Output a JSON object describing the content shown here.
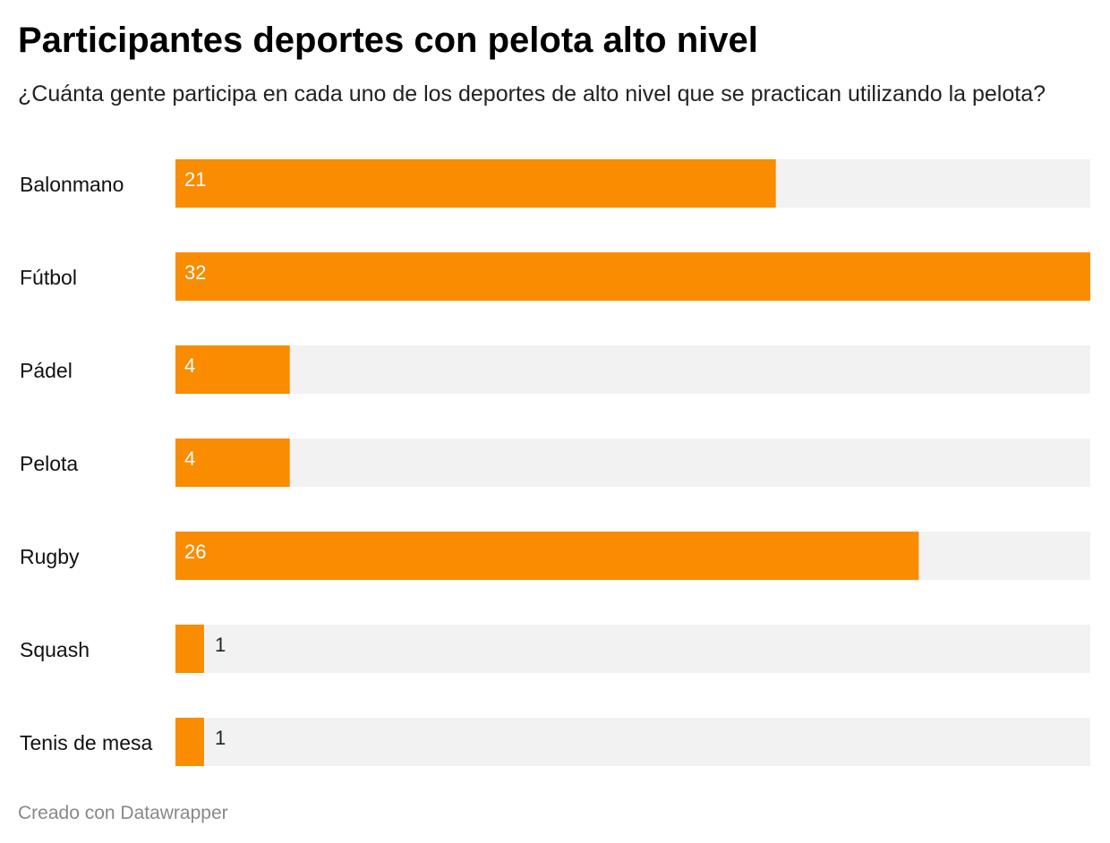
{
  "chart_data": {
    "type": "bar",
    "orientation": "horizontal",
    "title": "Participantes deportes con pelota alto nivel",
    "subtitle": "¿Cuánta gente participa en cada uno de los deportes de alto nivel que se practican utilizando la pelota?",
    "categories": [
      "Balonmano",
      "Fútbol",
      "Pádel",
      "Pelota",
      "Rugby",
      "Squash",
      "Tenis de mesa"
    ],
    "values": [
      21,
      32,
      4,
      4,
      26,
      1,
      1
    ],
    "xlim": [
      0,
      32
    ],
    "grid": false,
    "legend": "none",
    "bar_color": "#f98c00",
    "track_color": "#f2f2f2"
  },
  "footer": "Creado con Datawrapper"
}
